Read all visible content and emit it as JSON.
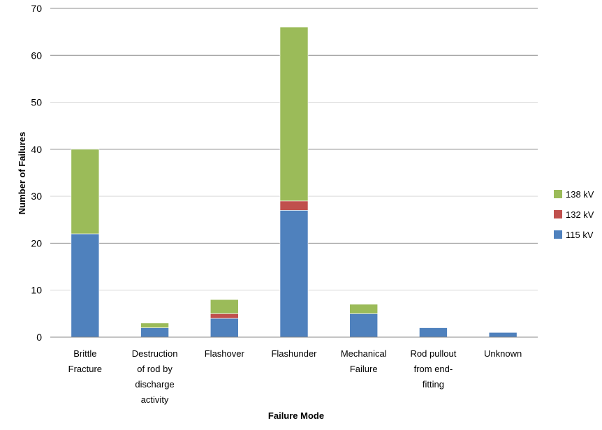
{
  "chart_data": {
    "type": "bar",
    "stacked": true,
    "title": "",
    "xlabel": "Failure Mode",
    "ylabel": "Number of Failures",
    "ylim": [
      0,
      70
    ],
    "yticks": [
      0,
      10,
      20,
      30,
      40,
      50,
      60,
      70
    ],
    "grid": true,
    "legend_position": "right",
    "categories": [
      [
        "Brittle",
        "Fracture"
      ],
      [
        "Destruction",
        "of rod by",
        "discharge",
        "activity"
      ],
      [
        "Flashover"
      ],
      [
        "Flashunder"
      ],
      [
        "Mechanical",
        "Failure"
      ],
      [
        "Rod pullout",
        "from end-",
        "fitting"
      ],
      [
        "Unknown"
      ]
    ],
    "series": [
      {
        "name": "115 kV",
        "color": "#4f81bd",
        "values": [
          22,
          2,
          4,
          27,
          5,
          2,
          1
        ]
      },
      {
        "name": "132 kV",
        "color": "#c0504d",
        "values": [
          0,
          0,
          1,
          2,
          0,
          0,
          0
        ]
      },
      {
        "name": "138 kV",
        "color": "#9bbb59",
        "values": [
          18,
          1,
          3,
          37,
          2,
          0,
          0
        ]
      }
    ]
  }
}
